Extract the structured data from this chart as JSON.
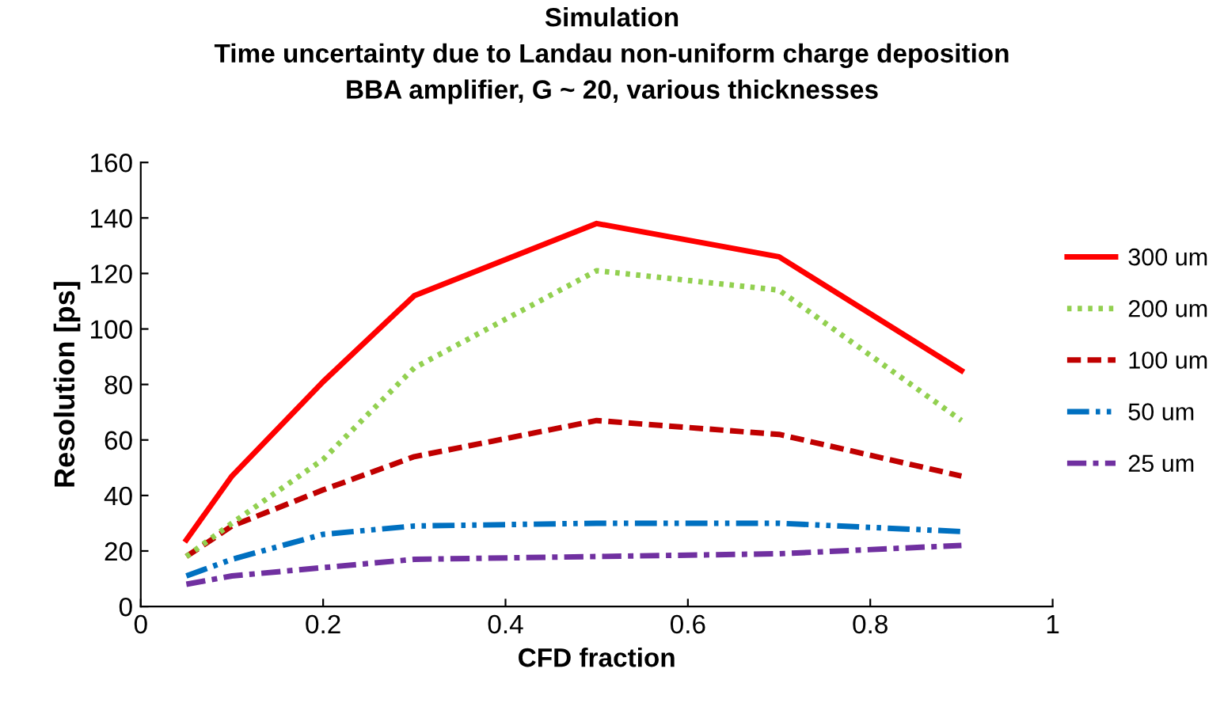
{
  "chart_data": {
    "type": "line",
    "title": "Simulation\nTime uncertainty due to Landau non-uniform charge deposition\nBBA amplifier, G ~ 20, various thicknesses",
    "xlabel": "CFD fraction",
    "ylabel": "Resolution [ps]",
    "x": [
      0.05,
      0.1,
      0.2,
      0.3,
      0.5,
      0.7,
      0.9
    ],
    "series": [
      {
        "name": "300 um",
        "color": "#ff0000",
        "line_style": "solid",
        "values": [
          24,
          47,
          81,
          112,
          138,
          126,
          85
        ]
      },
      {
        "name": "200 um",
        "color": "#92d050",
        "line_style": "dotted",
        "values": [
          18,
          30,
          53,
          86,
          121,
          114,
          67
        ]
      },
      {
        "name": "100 um",
        "color": "#c00000",
        "line_style": "dashed",
        "values": [
          18,
          29,
          42,
          54,
          67,
          62,
          47
        ]
      },
      {
        "name": "50 um",
        "color": "#0070c0",
        "line_style": "dashdotdot",
        "values": [
          11,
          17,
          26,
          29,
          30,
          30,
          27
        ]
      },
      {
        "name": "25 um",
        "color": "#7030a0",
        "line_style": "dashdot",
        "values": [
          8,
          11,
          14,
          17,
          18,
          19,
          22
        ]
      }
    ],
    "xlim": [
      0,
      1
    ],
    "xticks": [
      0,
      0.2,
      0.4,
      0.6,
      0.8,
      1
    ],
    "ylim": [
      0,
      160
    ],
    "yticks": [
      0,
      20,
      40,
      60,
      80,
      100,
      120,
      140,
      160
    ],
    "grid": false,
    "legend": "right",
    "marker": "none"
  }
}
